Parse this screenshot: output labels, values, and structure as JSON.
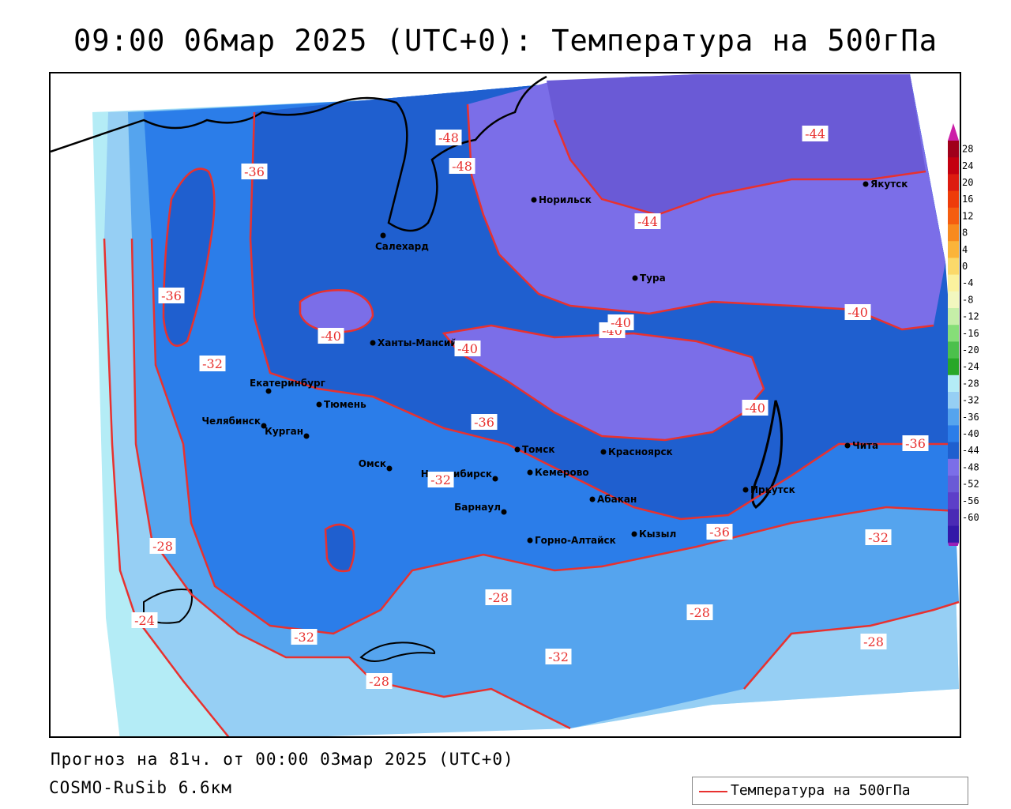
{
  "title": "09:00 06мар 2025 (UTC+0): Температура на 500гПа",
  "footer": {
    "forecast": "Прогноз на 81ч. от 00:00 03мар 2025 (UTC+0)",
    "model": "COSMO-RuSib 6.6км"
  },
  "legend": {
    "label": "Температура на 500гПа",
    "line_color": "#e8312f"
  },
  "colors": {
    "isoline": "#e8312f",
    "t_le_44": "#6a5ad6",
    "t_44_40": "#7b6ee8",
    "t_40_36": "#1f5fcf",
    "t_36_32": "#2b7de9",
    "t_32_28": "#55a4ee",
    "t_28_24": "#96cff4",
    "t_24_20": "#b4ecf6"
  },
  "colorbar": {
    "ticks": [
      "28",
      "24",
      "20",
      "16",
      "12",
      "8",
      "4",
      "0",
      "-4",
      "-8",
      "-12",
      "-16",
      "-20",
      "-24",
      "-28",
      "-32",
      "-36",
      "-40",
      "-44",
      "-48",
      "-52",
      "-56",
      "-60"
    ],
    "colors": [
      "#a0001a",
      "#c40010",
      "#dd1b10",
      "#ee3c0a",
      "#f55d10",
      "#f88a1e",
      "#fbb43a",
      "#fbd96a",
      "#fbf29e",
      "#f2f7bf",
      "#c6efa8",
      "#86de78",
      "#4cc04c",
      "#28a728",
      "#b4ecf6",
      "#96cff4",
      "#55a4ee",
      "#2b7de9",
      "#1f5fcf",
      "#7b6ee8",
      "#6a5ad6",
      "#5d3fc8",
      "#4a2ab5",
      "#3318a8"
    ],
    "top_arrow_color": "#cc1fa8",
    "bottom_arrow_color": "#9a1fb8"
  },
  "cities": [
    {
      "name": "Норильск"
    },
    {
      "name": "Якутск"
    },
    {
      "name": "Салехард"
    },
    {
      "name": "Тура"
    },
    {
      "name": "Ханты-Мансийск"
    },
    {
      "name": "Екатеринбург"
    },
    {
      "name": "Тюмень"
    },
    {
      "name": "Челябинск"
    },
    {
      "name": "Курган"
    },
    {
      "name": "Омск"
    },
    {
      "name": "Новосибирск"
    },
    {
      "name": "Томск"
    },
    {
      "name": "Кемерово"
    },
    {
      "name": "Красноярск"
    },
    {
      "name": "Барнаул"
    },
    {
      "name": "Абакан"
    },
    {
      "name": "Горно-Алтайск"
    },
    {
      "name": "Кызыл"
    },
    {
      "name": "Иркутск"
    },
    {
      "name": "Чита"
    }
  ],
  "isoline_labels": [
    "-48",
    "-48",
    "-44",
    "-44",
    "-36",
    "-36",
    "-40",
    "-40",
    "-40",
    "-40",
    "-40",
    "-40",
    "-32",
    "-36",
    "-32",
    "-36",
    "-36",
    "-28",
    "-32",
    "-24",
    "-28",
    "-32",
    "-28",
    "-32",
    "-28",
    "-28"
  ]
}
